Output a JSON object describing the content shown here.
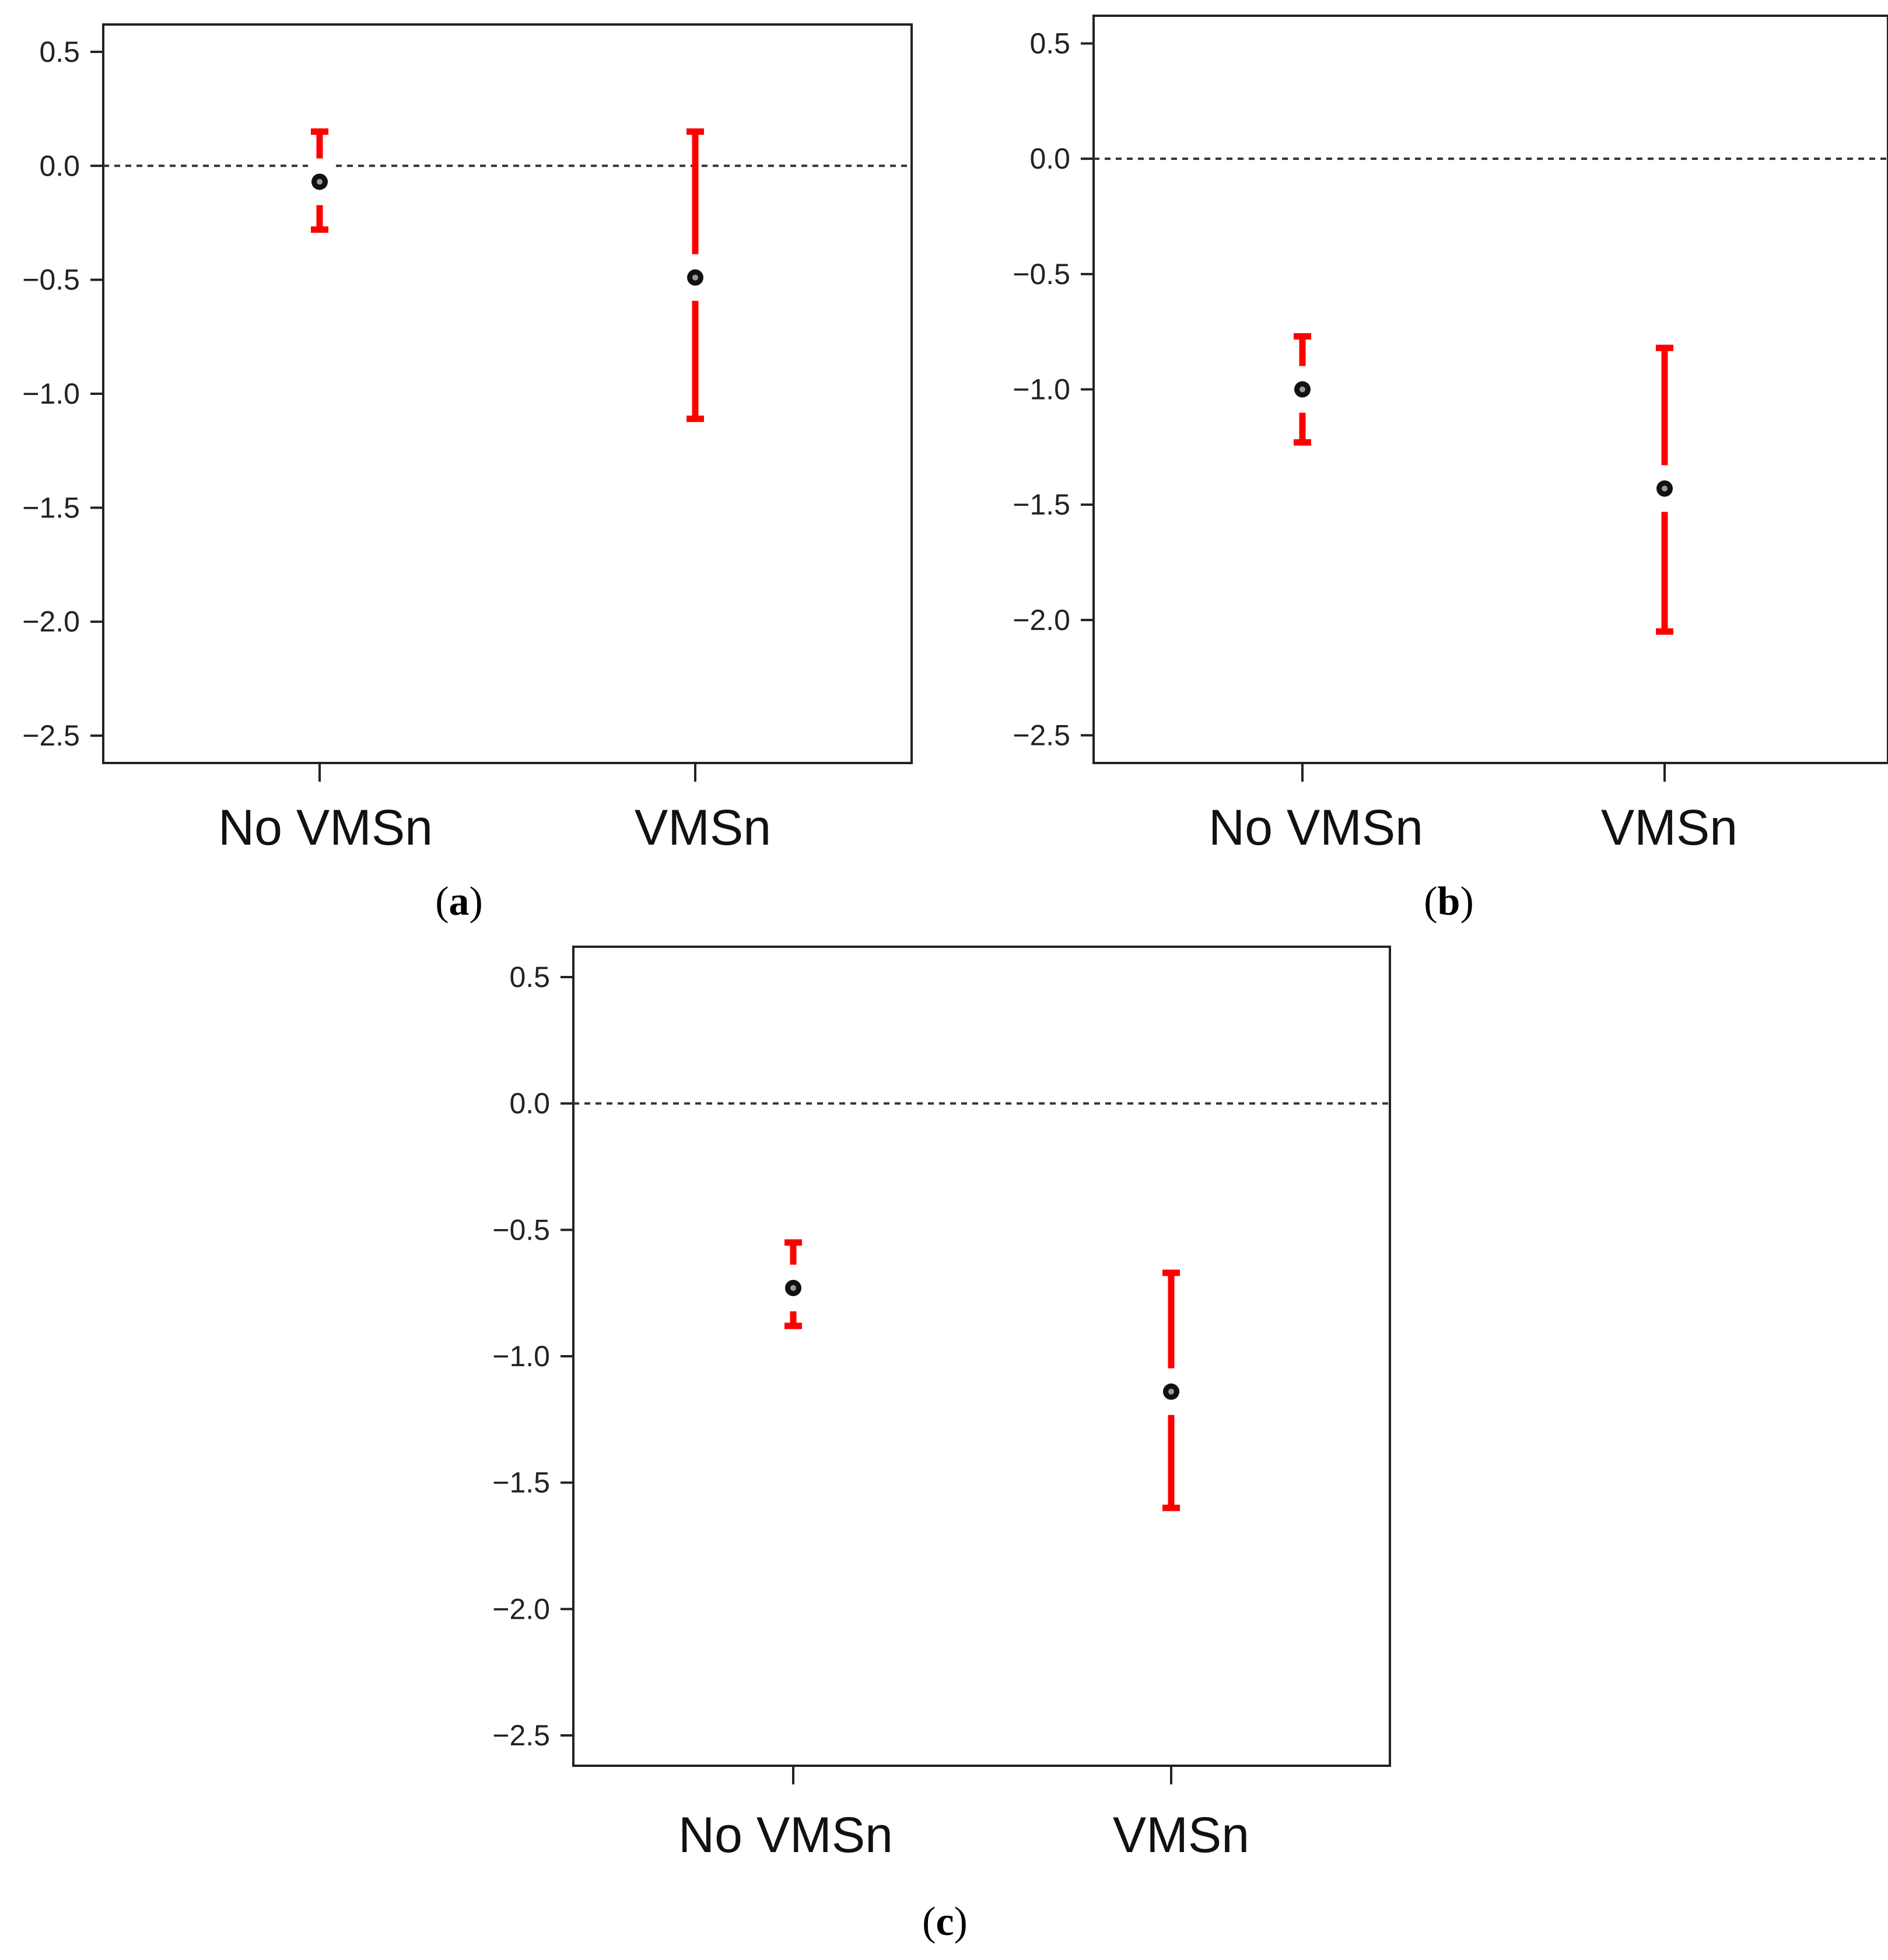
{
  "colors": {
    "error_bar": "#ff0000",
    "point": "#111111",
    "frame": "#222222",
    "zero_line": "#333333"
  },
  "chart_data": [
    {
      "type": "scatter",
      "panel_label": "a",
      "categories": [
        "No VMSn",
        "VMSn"
      ],
      "estimate": [
        -0.07,
        -0.49
      ],
      "ci_lower": [
        -0.28,
        -1.11
      ],
      "ci_upper": [
        0.15,
        0.15
      ],
      "yticks": [
        0.5,
        0.0,
        -0.5,
        -1.0,
        -1.5,
        -2.0,
        -2.5
      ],
      "ytick_labels": [
        "0.5",
        "0.0",
        "−0.5",
        "−1.0",
        "−1.5",
        "−2.0",
        "−2.5"
      ],
      "ylim": [
        -2.62,
        0.62
      ],
      "reference_line": 0.0,
      "grid": false
    },
    {
      "type": "scatter",
      "panel_label": "b",
      "categories": [
        "No VMSn",
        "VMSn"
      ],
      "estimate": [
        -1.0,
        -1.43
      ],
      "ci_lower": [
        -1.23,
        -2.05
      ],
      "ci_upper": [
        -0.77,
        -0.82
      ],
      "yticks": [
        0.5,
        0.0,
        -0.5,
        -1.0,
        -1.5,
        -2.0,
        -2.5
      ],
      "ytick_labels": [
        "0.5",
        "0.0",
        "−0.5",
        "−1.0",
        "−1.5",
        "−2.0",
        "−2.5"
      ],
      "ylim": [
        -2.62,
        0.62
      ],
      "reference_line": 0.0,
      "grid": false
    },
    {
      "type": "scatter",
      "panel_label": "c",
      "categories": [
        "No VMSn",
        "VMSn"
      ],
      "estimate": [
        -0.73,
        -1.14
      ],
      "ci_lower": [
        -0.88,
        -1.6
      ],
      "ci_upper": [
        -0.55,
        -0.67
      ],
      "yticks": [
        0.5,
        0.0,
        -0.5,
        -1.0,
        -1.5,
        -2.0,
        -2.5
      ],
      "ytick_labels": [
        "0.5",
        "0.0",
        "−0.5",
        "−1.0",
        "−1.5",
        "−2.0",
        "−2.5"
      ],
      "ylim": [
        -2.62,
        0.62
      ],
      "reference_line": 0.0,
      "grid": false
    }
  ]
}
